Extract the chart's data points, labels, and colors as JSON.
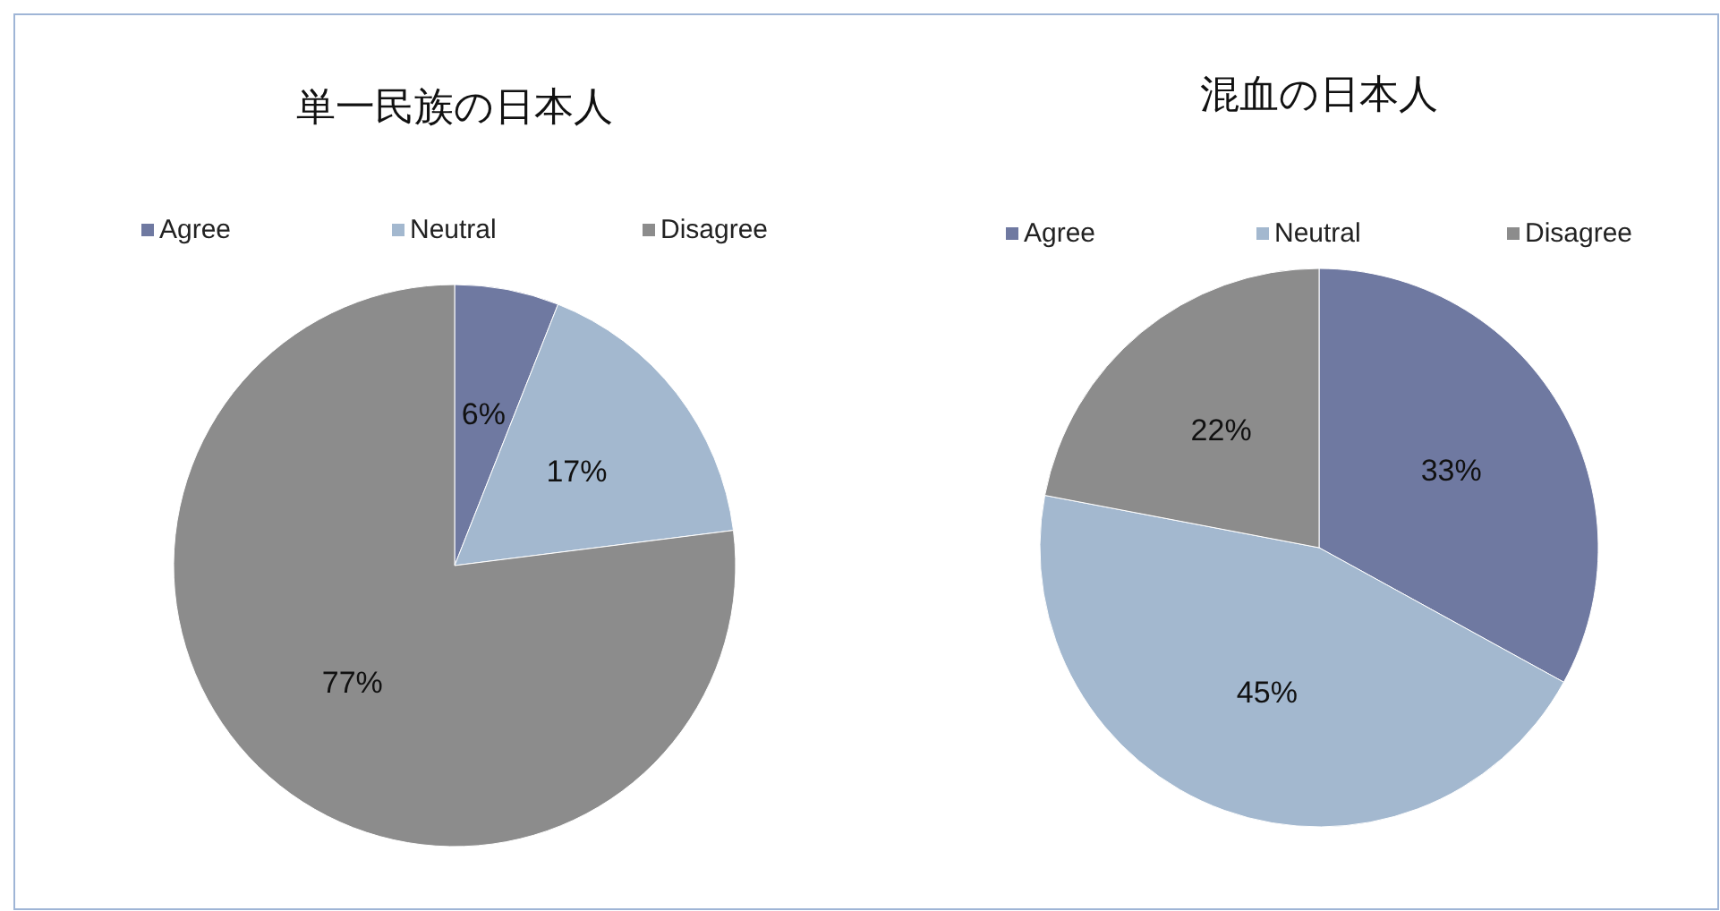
{
  "chart_data": [
    {
      "type": "pie",
      "title": "単一民族の日本人",
      "categories": [
        "Agree",
        "Neutral",
        "Disagree"
      ],
      "values": [
        6,
        17,
        77
      ],
      "value_labels": [
        "6%",
        "17%",
        "77%"
      ],
      "colors": [
        "#6f79a1",
        "#a3b8cf",
        "#8c8c8c"
      ],
      "legend": "top"
    },
    {
      "type": "pie",
      "title": "混血の日本人",
      "categories": [
        "Agree",
        "Neutral",
        "Disagree"
      ],
      "values": [
        33,
        45,
        22
      ],
      "value_labels": [
        "33%",
        "45%",
        "22%"
      ],
      "colors": [
        "#6f79a1",
        "#a3b8cf",
        "#8c8c8c"
      ],
      "legend": "top"
    }
  ]
}
